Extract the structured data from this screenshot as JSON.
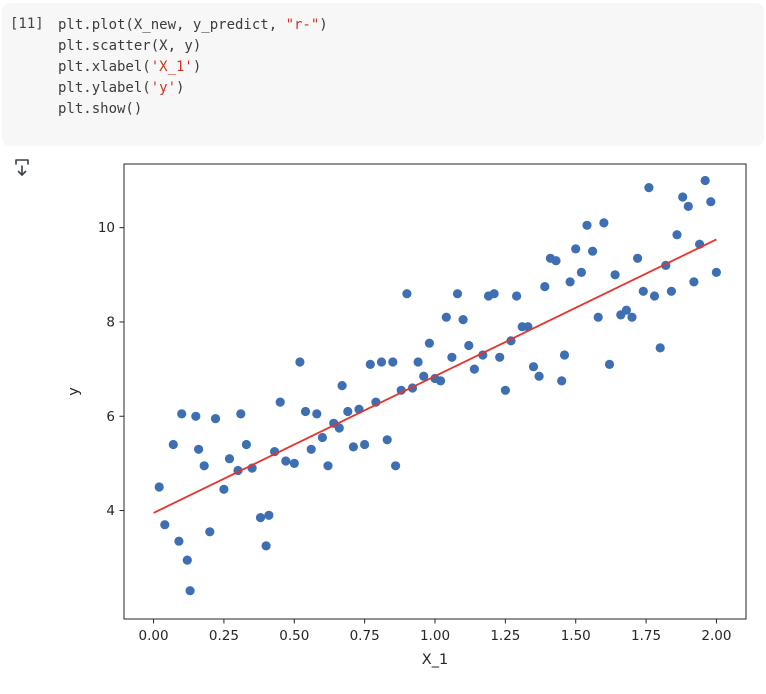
{
  "notebook": {
    "cell": {
      "execution_count": "[11]",
      "code_lines": [
        {
          "segments": [
            {
              "t": "plt.plot(X_new, y_predict, ",
              "c": "tok"
            },
            {
              "t": "\"r-\"",
              "c": "str"
            },
            {
              "t": ")",
              "c": "tok"
            }
          ]
        },
        {
          "segments": [
            {
              "t": "plt.scatter(X, y)",
              "c": "tok"
            }
          ]
        },
        {
          "segments": [
            {
              "t": "plt.xlabel(",
              "c": "tok"
            },
            {
              "t": "'X_1'",
              "c": "str"
            },
            {
              "t": ")",
              "c": "tok"
            }
          ]
        },
        {
          "segments": [
            {
              "t": "plt.ylabel(",
              "c": "tok"
            },
            {
              "t": "'y'",
              "c": "str"
            },
            {
              "t": ")",
              "c": "tok"
            }
          ]
        },
        {
          "segments": [
            {
              "t": "plt.show()",
              "c": "tok"
            }
          ]
        }
      ]
    }
  },
  "chart_data": {
    "type": "scatter",
    "title": "",
    "xlabel": "X_1",
    "ylabel": "y",
    "xlim": [
      -0.105,
      2.105
    ],
    "ylim": [
      1.7,
      11.35
    ],
    "grid": false,
    "legend": null,
    "x_tick_values": [
      0,
      0.25,
      0.5,
      0.75,
      1.0,
      1.25,
      1.5,
      1.75,
      2.0
    ],
    "x_tick_labels": [
      "0.00",
      "0.25",
      "0.50",
      "0.75",
      "1.00",
      "1.25",
      "1.50",
      "1.75",
      "2.00"
    ],
    "y_tick_values": [
      4,
      6,
      8,
      10
    ],
    "y_tick_labels": [
      "4",
      "6",
      "8",
      "10"
    ],
    "axis_color": "#262626",
    "series": [
      {
        "name": "scatter(X, y)",
        "type": "scatter",
        "color": "#3d6fb2",
        "marker_radius": 4.6,
        "points": [
          [
            0.02,
            4.5
          ],
          [
            0.04,
            3.7
          ],
          [
            0.07,
            5.4
          ],
          [
            0.09,
            3.35
          ],
          [
            0.1,
            6.05
          ],
          [
            0.12,
            2.95
          ],
          [
            0.13,
            2.3
          ],
          [
            0.15,
            6.0
          ],
          [
            0.16,
            5.3
          ],
          [
            0.18,
            4.95
          ],
          [
            0.2,
            3.55
          ],
          [
            0.22,
            5.95
          ],
          [
            0.25,
            4.45
          ],
          [
            0.27,
            5.1
          ],
          [
            0.3,
            4.85
          ],
          [
            0.31,
            6.05
          ],
          [
            0.33,
            5.4
          ],
          [
            0.35,
            4.9
          ],
          [
            0.38,
            3.85
          ],
          [
            0.4,
            3.25
          ],
          [
            0.41,
            3.9
          ],
          [
            0.43,
            5.25
          ],
          [
            0.45,
            6.3
          ],
          [
            0.47,
            5.05
          ],
          [
            0.5,
            5.0
          ],
          [
            0.52,
            7.15
          ],
          [
            0.54,
            6.1
          ],
          [
            0.56,
            5.3
          ],
          [
            0.58,
            6.05
          ],
          [
            0.6,
            5.55
          ],
          [
            0.62,
            4.95
          ],
          [
            0.64,
            5.85
          ],
          [
            0.66,
            5.75
          ],
          [
            0.67,
            6.65
          ],
          [
            0.69,
            6.1
          ],
          [
            0.71,
            5.35
          ],
          [
            0.73,
            6.15
          ],
          [
            0.75,
            5.4
          ],
          [
            0.77,
            7.1
          ],
          [
            0.79,
            6.3
          ],
          [
            0.81,
            7.15
          ],
          [
            0.83,
            5.5
          ],
          [
            0.85,
            7.15
          ],
          [
            0.86,
            4.95
          ],
          [
            0.88,
            6.55
          ],
          [
            0.9,
            8.6
          ],
          [
            0.92,
            6.6
          ],
          [
            0.94,
            7.15
          ],
          [
            0.96,
            6.85
          ],
          [
            0.98,
            7.55
          ],
          [
            1.0,
            6.8
          ],
          [
            1.02,
            6.75
          ],
          [
            1.04,
            8.1
          ],
          [
            1.06,
            7.25
          ],
          [
            1.08,
            8.6
          ],
          [
            1.1,
            8.05
          ],
          [
            1.12,
            7.5
          ],
          [
            1.14,
            7.0
          ],
          [
            1.17,
            7.3
          ],
          [
            1.19,
            8.55
          ],
          [
            1.21,
            8.6
          ],
          [
            1.23,
            7.25
          ],
          [
            1.25,
            6.55
          ],
          [
            1.27,
            7.6
          ],
          [
            1.29,
            8.55
          ],
          [
            1.31,
            7.9
          ],
          [
            1.33,
            7.9
          ],
          [
            1.35,
            7.05
          ],
          [
            1.37,
            6.85
          ],
          [
            1.39,
            8.75
          ],
          [
            1.41,
            9.35
          ],
          [
            1.43,
            9.3
          ],
          [
            1.45,
            6.75
          ],
          [
            1.46,
            7.3
          ],
          [
            1.48,
            8.85
          ],
          [
            1.5,
            9.55
          ],
          [
            1.52,
            9.05
          ],
          [
            1.54,
            10.05
          ],
          [
            1.56,
            9.5
          ],
          [
            1.58,
            8.1
          ],
          [
            1.6,
            10.1
          ],
          [
            1.62,
            7.1
          ],
          [
            1.64,
            9.0
          ],
          [
            1.66,
            8.15
          ],
          [
            1.68,
            8.25
          ],
          [
            1.7,
            8.1
          ],
          [
            1.72,
            9.35
          ],
          [
            1.74,
            8.65
          ],
          [
            1.76,
            10.85
          ],
          [
            1.78,
            8.55
          ],
          [
            1.8,
            7.45
          ],
          [
            1.82,
            9.2
          ],
          [
            1.84,
            8.65
          ],
          [
            1.86,
            9.85
          ],
          [
            1.88,
            10.65
          ],
          [
            1.9,
            10.45
          ],
          [
            1.92,
            8.85
          ],
          [
            1.94,
            9.65
          ],
          [
            1.96,
            11.0
          ],
          [
            1.98,
            10.55
          ],
          [
            2.0,
            9.05
          ]
        ]
      },
      {
        "name": "plot(X_new, y_predict, \"r-\")",
        "type": "line",
        "color": "#e5342b",
        "stroke_width": 1.8,
        "points": [
          [
            0,
            3.95
          ],
          [
            2,
            9.75
          ]
        ]
      }
    ]
  }
}
